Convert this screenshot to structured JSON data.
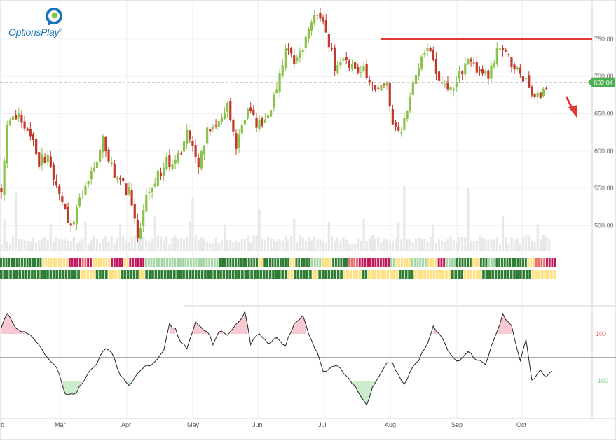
{
  "brand": {
    "name": "OptionsPlay",
    "mark": "®"
  },
  "chart_data": {
    "type": "candlestick",
    "title": "",
    "x_months": [
      "Feb",
      "Mar",
      "Apr",
      "May",
      "Jun",
      "Jul",
      "Aug",
      "Sep",
      "Oct"
    ],
    "x_month_labels": [
      "b",
      "Mar",
      "Apr",
      "May",
      "Jun",
      "Jul",
      "Aug",
      "Sep",
      "Oct"
    ],
    "y_ticks": [
      500,
      550,
      600,
      650,
      700,
      750
    ],
    "y_tick_labels": [
      "500.00",
      "550.00",
      "600.00",
      "650.00",
      "700.00",
      "750.00"
    ],
    "ylim": [
      460,
      795
    ],
    "last_price": 692.04,
    "last_price_label": "692.04",
    "resistance_level": 750,
    "trend_arrow": "down",
    "colors": {
      "up": "#8bc34a",
      "down": "#c0392b",
      "resistance": "#e53935",
      "price_tag": "#4caf50"
    },
    "price_keypoints": [
      [
        0,
        550
      ],
      [
        2,
        630
      ],
      [
        6,
        650
      ],
      [
        9,
        630
      ],
      [
        13,
        585
      ],
      [
        16,
        595
      ],
      [
        21,
        530
      ],
      [
        24,
        500
      ],
      [
        27,
        535
      ],
      [
        32,
        580
      ],
      [
        35,
        615
      ],
      [
        40,
        560
      ],
      [
        44,
        545
      ],
      [
        47,
        485
      ],
      [
        50,
        540
      ],
      [
        53,
        560
      ],
      [
        57,
        585
      ],
      [
        61,
        590
      ],
      [
        64,
        625
      ],
      [
        68,
        575
      ],
      [
        71,
        630
      ],
      [
        75,
        640
      ],
      [
        78,
        665
      ],
      [
        81,
        610
      ],
      [
        85,
        660
      ],
      [
        88,
        635
      ],
      [
        91,
        640
      ],
      [
        95,
        680
      ],
      [
        98,
        735
      ],
      [
        102,
        720
      ],
      [
        105,
        750
      ],
      [
        109,
        785
      ],
      [
        112,
        760
      ],
      [
        115,
        715
      ],
      [
        118,
        730
      ],
      [
        122,
        705
      ],
      [
        125,
        715
      ],
      [
        129,
        680
      ],
      [
        133,
        690
      ],
      [
        135,
        630
      ],
      [
        138,
        625
      ],
      [
        141,
        680
      ],
      [
        144,
        715
      ],
      [
        147,
        745
      ],
      [
        150,
        705
      ],
      [
        153,
        690
      ],
      [
        156,
        680
      ],
      [
        159,
        710
      ],
      [
        162,
        725
      ],
      [
        165,
        700
      ],
      [
        168,
        700
      ],
      [
        171,
        735
      ],
      [
        174,
        730
      ],
      [
        177,
        715
      ],
      [
        180,
        700
      ],
      [
        183,
        680
      ],
      [
        186,
        675
      ],
      [
        188,
        690
      ]
    ],
    "volume": {
      "visible": true,
      "relative_peaks": [
        0.9,
        0.3,
        0.35,
        0.3,
        0.45,
        0.35,
        0.3,
        0.6,
        0.4,
        0.35,
        0.4,
        0.35,
        0.3,
        1.0,
        0.45,
        0.3,
        0.25
      ]
    },
    "signal_rows": {
      "palette": {
        "green": "#2e7d32",
        "lightgreen": "#a5d6a7",
        "yellow": "#ffe082",
        "pink": "#e57373",
        "red": "#c2185b"
      },
      "row1": [
        [
          "green",
          16
        ],
        [
          "yellow",
          10
        ],
        [
          "red",
          5
        ],
        [
          "pink",
          2
        ],
        [
          "red",
          2
        ],
        [
          "yellow",
          7
        ],
        [
          "red",
          5
        ],
        [
          "yellow",
          2
        ],
        [
          "red",
          6
        ],
        [
          "lightgreen",
          2
        ],
        [
          "lightgreen",
          26
        ],
        [
          "green",
          15
        ],
        [
          "yellow",
          2
        ],
        [
          "green",
          10
        ],
        [
          "yellow",
          2
        ],
        [
          "green",
          6
        ],
        [
          "lightgreen",
          4
        ],
        [
          "yellow",
          4
        ],
        [
          "green",
          6
        ],
        [
          "pink",
          4
        ],
        [
          "red",
          12
        ],
        [
          "lightgreen",
          2
        ],
        [
          "yellow",
          6
        ],
        [
          "lightgreen",
          6
        ],
        [
          "yellow",
          4
        ],
        [
          "red",
          3
        ],
        [
          "lightgreen",
          4
        ],
        [
          "green",
          6
        ],
        [
          "yellow",
          3
        ],
        [
          "green",
          3
        ],
        [
          "lightgreen",
          3
        ],
        [
          "green",
          12
        ],
        [
          "yellow",
          3
        ],
        [
          "pink",
          4
        ],
        [
          "red",
          4
        ]
      ],
      "row2": [
        [
          "green",
          26
        ],
        [
          "yellow",
          5
        ],
        [
          "green",
          4
        ],
        [
          "yellow",
          4
        ],
        [
          "green",
          6
        ],
        [
          "yellow",
          2
        ],
        [
          "green",
          10
        ],
        [
          "green",
          36
        ],
        [
          "yellow",
          2
        ],
        [
          "green",
          6
        ],
        [
          "yellow",
          2
        ],
        [
          "green",
          8
        ],
        [
          "yellow",
          6
        ],
        [
          "green",
          2
        ],
        [
          "yellow",
          10
        ],
        [
          "green",
          5
        ],
        [
          "yellow",
          12
        ],
        [
          "green",
          4
        ],
        [
          "yellow",
          6
        ],
        [
          "green",
          16
        ],
        [
          "yellow",
          8
        ]
      ]
    },
    "oscillator": {
      "type": "line",
      "y_ticks": [
        100,
        -100
      ],
      "y_tick_labels": [
        "100",
        "-100"
      ],
      "upper_band": 100,
      "lower_band": -100,
      "ylim": [
        -260,
        210
      ],
      "colors": {
        "upper": "#e57373",
        "lower": "#81c784",
        "upper_fill": "#f8c9d3",
        "lower_fill": "#cbeccd",
        "line": "#222222"
      },
      "keypoints": [
        [
          0,
          120
        ],
        [
          2,
          190
        ],
        [
          6,
          110
        ],
        [
          8,
          110
        ],
        [
          12,
          70
        ],
        [
          16,
          0
        ],
        [
          19,
          -40
        ],
        [
          22,
          -150
        ],
        [
          25,
          -160
        ],
        [
          28,
          -110
        ],
        [
          30,
          -60
        ],
        [
          33,
          -20
        ],
        [
          36,
          40
        ],
        [
          38,
          20
        ],
        [
          41,
          -70
        ],
        [
          44,
          -120
        ],
        [
          47,
          -70
        ],
        [
          50,
          -40
        ],
        [
          53,
          -20
        ],
        [
          56,
          30
        ],
        [
          58,
          140
        ],
        [
          60,
          120
        ],
        [
          62,
          60
        ],
        [
          64,
          40
        ],
        [
          67,
          150
        ],
        [
          69,
          130
        ],
        [
          71,
          110
        ],
        [
          73,
          60
        ],
        [
          75,
          110
        ],
        [
          78,
          100
        ],
        [
          81,
          140
        ],
        [
          84,
          190
        ],
        [
          86,
          60
        ],
        [
          89,
          100
        ],
        [
          92,
          60
        ],
        [
          95,
          80
        ],
        [
          98,
          50
        ],
        [
          101,
          140
        ],
        [
          104,
          180
        ],
        [
          106,
          100
        ],
        [
          109,
          20
        ],
        [
          111,
          -60
        ],
        [
          114,
          -40
        ],
        [
          116,
          -30
        ],
        [
          119,
          -80
        ],
        [
          121,
          -110
        ],
        [
          124,
          -160
        ],
        [
          126,
          -200
        ],
        [
          128,
          -130
        ],
        [
          130,
          -80
        ],
        [
          133,
          -20
        ],
        [
          135,
          -20
        ],
        [
          137,
          -80
        ],
        [
          139,
          -120
        ],
        [
          141,
          -60
        ],
        [
          144,
          -10
        ],
        [
          147,
          60
        ],
        [
          149,
          130
        ],
        [
          152,
          80
        ],
        [
          155,
          10
        ],
        [
          158,
          -20
        ],
        [
          161,
          20
        ],
        [
          164,
          -10
        ],
        [
          167,
          -30
        ],
        [
          170,
          80
        ],
        [
          173,
          180
        ],
        [
          176,
          130
        ],
        [
          179,
          -10
        ],
        [
          181,
          80
        ],
        [
          183,
          -100
        ],
        [
          186,
          -60
        ],
        [
          188,
          -80
        ],
        [
          190,
          -60
        ]
      ]
    }
  }
}
